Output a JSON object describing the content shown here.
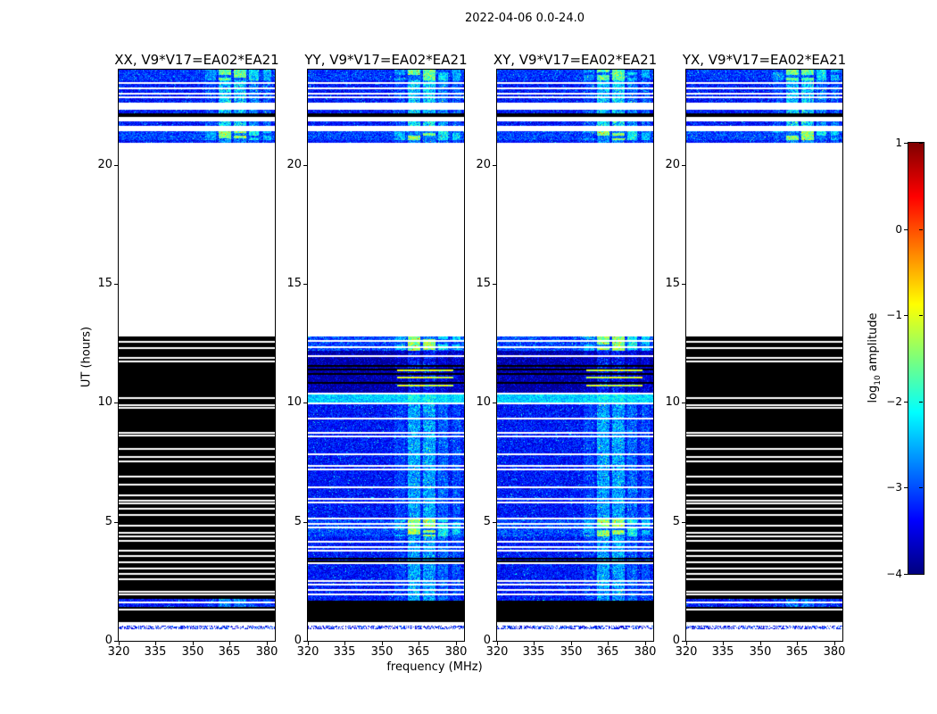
{
  "chart_data": {
    "type": "heatmap",
    "title": "2022-04-06 0.0-24.0",
    "xlabel": "frequency (MHz)",
    "ylabel": "UT (hours)",
    "x_range_mhz": [
      320,
      383.3
    ],
    "y_range_hours": [
      0,
      24
    ],
    "x_ticks": [
      320,
      335,
      350,
      365,
      380
    ],
    "y_ticks": [
      0,
      5,
      10,
      15,
      20
    ],
    "grid": false,
    "panels": [
      {
        "title": "XX, V9*V17=EA02*EA21",
        "pattern": "dark"
      },
      {
        "title": "YY, V9*V17=EA02*EA21",
        "pattern": "bright"
      },
      {
        "title": "XY, V9*V17=EA02*EA21",
        "pattern": "bright"
      },
      {
        "title": "YX, V9*V17=EA02*EA21",
        "pattern": "dark"
      }
    ],
    "colorbar": {
      "label_pre": "log",
      "label_sub": "10",
      "label_post": " amplitude",
      "ticks": [
        "1",
        "0",
        "−1",
        "−2",
        "−3",
        "−4"
      ],
      "tick_values": [
        1,
        0,
        -1,
        -2,
        -3,
        -4
      ],
      "vmin": -4,
      "vmax": 1,
      "colormap": "jet"
    },
    "rfi_bands_mhz": [
      [
        360.5,
        365.5
      ],
      [
        366.8,
        371.8
      ],
      [
        372.8,
        376.8
      ],
      [
        378.6,
        382.0
      ],
      [
        355.0,
        359.5
      ]
    ],
    "rfi_band_weights": [
      1.0,
      1.0,
      0.55,
      0.4,
      0.3
    ],
    "patterns": {
      "top": {
        "bands": [
          [
            23.55,
            24.0,
            "noise_patch",
            0.38
          ],
          [
            22.62,
            23.55,
            "noise",
            0.25
          ],
          [
            22.32,
            22.62,
            "white",
            0
          ],
          [
            22.17,
            22.32,
            "noise",
            0.25
          ],
          [
            22.02,
            22.17,
            "black",
            0
          ],
          [
            21.82,
            22.02,
            "white",
            0
          ],
          [
            21.62,
            21.82,
            "noise",
            0.3
          ],
          [
            21.42,
            21.62,
            "white",
            0
          ],
          [
            21.02,
            21.42,
            "noise_patch2",
            0.42
          ],
          [
            20.93,
            21.02,
            "noise",
            0.15
          ]
        ],
        "white_lines": [
          23.42,
          23.2,
          23.0,
          22.85
        ],
        "black_lines": [],
        "green_lines": []
      },
      "dark": {
        "bands": [
          [
            12.78,
            20.93,
            "white",
            0
          ],
          [
            1.78,
            12.78,
            "black",
            0
          ],
          [
            1.42,
            1.78,
            "noise",
            0.15
          ],
          [
            0.78,
            1.42,
            "black",
            0
          ],
          [
            0.62,
            0.78,
            "white",
            0
          ],
          [
            0.5,
            0.62,
            "thin_blue",
            0
          ],
          [
            0.0,
            0.5,
            "white",
            0
          ]
        ],
        "white_lines": [
          12.55,
          12.3,
          11.9,
          11.72,
          10.2,
          9.9,
          9.78,
          8.75,
          8.62,
          8.05,
          7.72,
          7.55,
          6.9,
          6.55,
          6.1,
          5.9,
          5.78,
          5.55,
          5.3,
          4.82,
          4.55,
          4.4,
          4.2,
          3.8,
          3.55,
          3.3,
          3.05,
          2.8,
          2.6,
          2.05,
          1.95,
          1.62,
          1.32
        ],
        "black_lines": [],
        "green_lines": []
      },
      "bright": {
        "bands": [
          [
            12.78,
            20.93,
            "white",
            0
          ],
          [
            12.18,
            12.78,
            "noise_patch2",
            0.42
          ],
          [
            11.82,
            12.18,
            "dark",
            0.28
          ],
          [
            10.38,
            11.82,
            "dark",
            0.28
          ],
          [
            10.02,
            10.38,
            "noise_bright",
            0.2
          ],
          [
            9.92,
            10.02,
            "white",
            0
          ],
          [
            5.15,
            9.92,
            "noise",
            0.2
          ],
          [
            4.38,
            5.15,
            "noise_patch2",
            0.42
          ],
          [
            1.68,
            4.38,
            "noise",
            0.2
          ],
          [
            0.78,
            1.68,
            "black",
            0
          ],
          [
            0.62,
            0.78,
            "white",
            0
          ],
          [
            0.5,
            0.62,
            "thin_blue",
            0
          ],
          [
            0.0,
            0.5,
            "white",
            0
          ]
        ],
        "white_lines": [
          12.6,
          12.35,
          11.95,
          10.4,
          9.35,
          8.75,
          8.6,
          7.85,
          7.35,
          7.2,
          6.45,
          5.95,
          5.8,
          5.12,
          4.9,
          4.75,
          4.15,
          3.95,
          3.8,
          3.25,
          2.5,
          2.35,
          2.15,
          1.95
        ],
        "black_lines": [
          11.55,
          11.4,
          11.2,
          10.85,
          3.45,
          3.33
        ],
        "green_lines": [
          11.35,
          11.05,
          10.72
        ]
      }
    }
  }
}
